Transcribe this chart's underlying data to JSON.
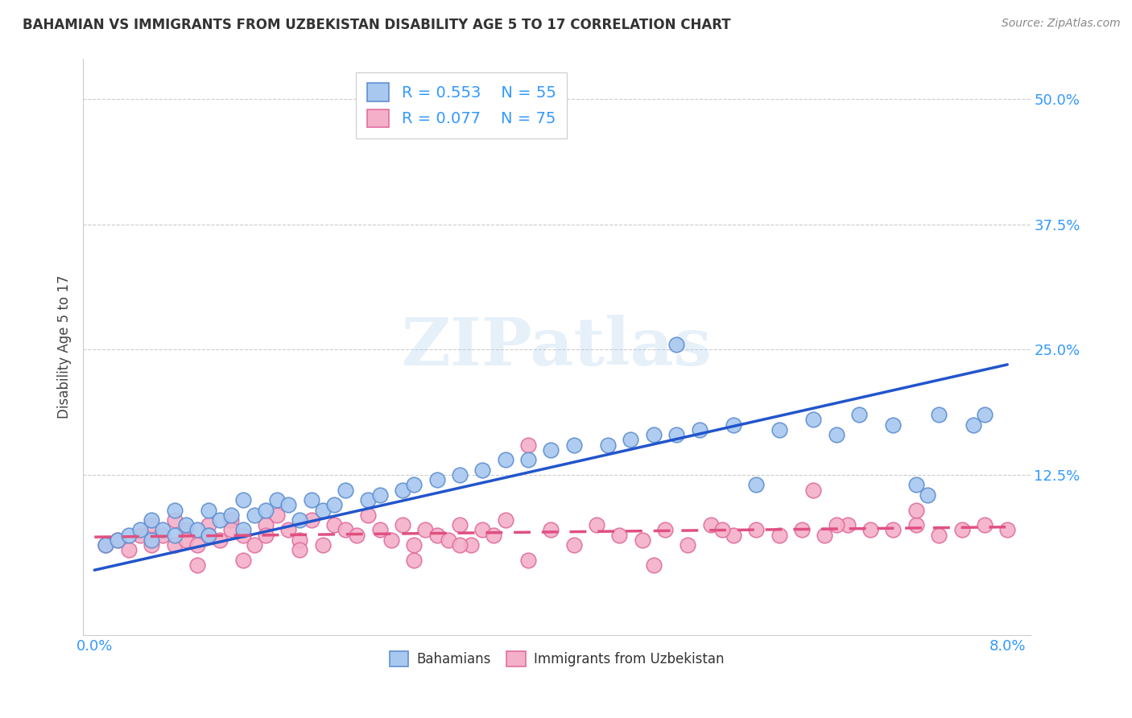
{
  "title": "BAHAMIAN VS IMMIGRANTS FROM UZBEKISTAN DISABILITY AGE 5 TO 17 CORRELATION CHART",
  "source": "Source: ZipAtlas.com",
  "ylabel": "Disability Age 5 to 17",
  "legend_label_blue": "Bahamians",
  "legend_label_pink": "Immigrants from Uzbekistan",
  "legend_r_blue": "R = 0.553",
  "legend_n_blue": "N = 55",
  "legend_r_pink": "R = 0.077",
  "legend_n_pink": "N = 75",
  "blue_color": "#2255cc",
  "pink_color": "#e05080",
  "blue_scatter_face": "#a8c8f0",
  "pink_scatter_face": "#f4b0c8",
  "blue_scatter_edge": "#6090d0",
  "pink_scatter_edge": "#e070a0",
  "xmin": -0.001,
  "xmax": 0.082,
  "ymin": -0.035,
  "ymax": 0.54,
  "yticks": [
    0.0,
    0.125,
    0.25,
    0.375,
    0.5
  ],
  "ytick_labels": [
    "",
    "12.5%",
    "25.0%",
    "37.5%",
    "50.0%"
  ],
  "xtick_left_label": "0.0%",
  "xtick_right_label": "8.0%",
  "blue_line_x": [
    0.0,
    0.08
  ],
  "blue_line_y": [
    0.03,
    0.235
  ],
  "pink_line_x": [
    0.0,
    0.08
  ],
  "pink_line_y": [
    0.063,
    0.073
  ],
  "watermark": "ZIPatlas",
  "blue_pts_x": [
    0.001,
    0.002,
    0.003,
    0.004,
    0.005,
    0.005,
    0.006,
    0.007,
    0.007,
    0.008,
    0.009,
    0.01,
    0.01,
    0.011,
    0.012,
    0.013,
    0.013,
    0.014,
    0.015,
    0.016,
    0.017,
    0.018,
    0.019,
    0.02,
    0.021,
    0.022,
    0.024,
    0.025,
    0.027,
    0.028,
    0.03,
    0.032,
    0.034,
    0.036,
    0.038,
    0.04,
    0.042,
    0.045,
    0.047,
    0.049,
    0.051,
    0.053,
    0.056,
    0.058,
    0.06,
    0.063,
    0.065,
    0.067,
    0.07,
    0.072,
    0.074,
    0.077,
    0.078,
    0.073,
    0.051
  ],
  "blue_pts_y": [
    0.055,
    0.06,
    0.065,
    0.07,
    0.06,
    0.08,
    0.07,
    0.065,
    0.09,
    0.075,
    0.07,
    0.065,
    0.09,
    0.08,
    0.085,
    0.07,
    0.1,
    0.085,
    0.09,
    0.1,
    0.095,
    0.08,
    0.1,
    0.09,
    0.095,
    0.11,
    0.1,
    0.105,
    0.11,
    0.115,
    0.12,
    0.125,
    0.13,
    0.14,
    0.14,
    0.15,
    0.155,
    0.155,
    0.16,
    0.165,
    0.165,
    0.17,
    0.175,
    0.115,
    0.17,
    0.18,
    0.165,
    0.185,
    0.175,
    0.115,
    0.185,
    0.175,
    0.185,
    0.105,
    0.255
  ],
  "pink_pts_x": [
    0.001,
    0.002,
    0.003,
    0.004,
    0.005,
    0.005,
    0.006,
    0.007,
    0.007,
    0.008,
    0.008,
    0.009,
    0.01,
    0.01,
    0.011,
    0.012,
    0.012,
    0.013,
    0.014,
    0.015,
    0.015,
    0.016,
    0.017,
    0.018,
    0.019,
    0.02,
    0.021,
    0.022,
    0.023,
    0.024,
    0.025,
    0.026,
    0.027,
    0.028,
    0.029,
    0.03,
    0.031,
    0.032,
    0.033,
    0.034,
    0.035,
    0.036,
    0.038,
    0.04,
    0.042,
    0.044,
    0.046,
    0.048,
    0.05,
    0.052,
    0.054,
    0.056,
    0.058,
    0.06,
    0.062,
    0.064,
    0.066,
    0.068,
    0.07,
    0.072,
    0.074,
    0.076,
    0.078,
    0.08,
    0.063,
    0.038,
    0.065,
    0.072,
    0.049,
    0.055,
    0.028,
    0.032,
    0.018,
    0.013,
    0.009
  ],
  "pink_pts_y": [
    0.055,
    0.06,
    0.05,
    0.065,
    0.055,
    0.075,
    0.065,
    0.055,
    0.08,
    0.07,
    0.06,
    0.055,
    0.075,
    0.065,
    0.06,
    0.08,
    0.07,
    0.065,
    0.055,
    0.075,
    0.065,
    0.085,
    0.07,
    0.06,
    0.08,
    0.055,
    0.075,
    0.07,
    0.065,
    0.085,
    0.07,
    0.06,
    0.075,
    0.055,
    0.07,
    0.065,
    0.06,
    0.075,
    0.055,
    0.07,
    0.065,
    0.08,
    0.155,
    0.07,
    0.055,
    0.075,
    0.065,
    0.06,
    0.07,
    0.055,
    0.075,
    0.065,
    0.07,
    0.065,
    0.07,
    0.065,
    0.075,
    0.07,
    0.07,
    0.075,
    0.065,
    0.07,
    0.075,
    0.07,
    0.11,
    0.04,
    0.075,
    0.09,
    0.035,
    0.07,
    0.04,
    0.055,
    0.05,
    0.04,
    0.035
  ]
}
